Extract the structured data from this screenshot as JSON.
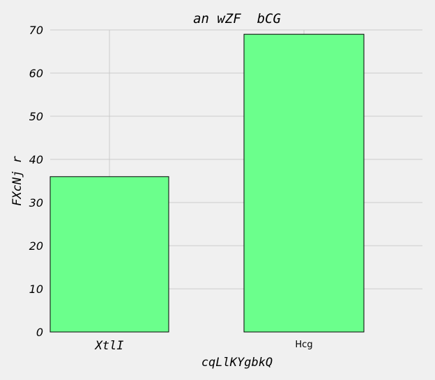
{
  "chart_data": {
    "type": "bar",
    "title": "an wZF  bCG",
    "xlabel": "cqLlKYgbkQ",
    "ylabel": "FXcNj r",
    "categories": [
      "XtlI",
      "Hcg"
    ],
    "values": [
      36,
      69
    ],
    "ylim": [
      0,
      70
    ],
    "yticks": [
      "0",
      "10",
      "20",
      "30",
      "40",
      "50",
      "60",
      "70"
    ],
    "grid": true,
    "colors": {
      "bar_fill": "#6bff8c",
      "bar_edge": "#000000",
      "grid": "#cbcbcb",
      "background": "#f0f0f0",
      "text": "#000000"
    }
  }
}
